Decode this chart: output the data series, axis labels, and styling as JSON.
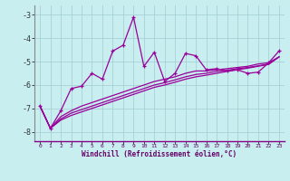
{
  "xlabel": "Windchill (Refroidissement éolien,°C)",
  "bg_color": "#c8eef0",
  "grid_color": "#a0ccd0",
  "line_color": "#990099",
  "xlim": [
    -0.5,
    23.5
  ],
  "ylim": [
    -8.4,
    -2.6
  ],
  "yticks": [
    -8,
    -7,
    -6,
    -5,
    -4,
    -3
  ],
  "xticks": [
    0,
    1,
    2,
    3,
    4,
    5,
    6,
    7,
    8,
    9,
    10,
    11,
    12,
    13,
    14,
    15,
    16,
    17,
    18,
    19,
    20,
    21,
    22,
    23
  ],
  "series1_x": [
    0,
    1,
    2,
    3,
    4,
    5,
    6,
    7,
    8,
    9,
    10,
    11,
    12,
    13,
    14,
    15,
    16,
    17,
    18,
    19,
    20,
    21,
    22,
    23
  ],
  "series1_y": [
    -6.9,
    -7.85,
    -7.1,
    -6.15,
    -6.05,
    -5.5,
    -5.75,
    -4.55,
    -4.3,
    -3.1,
    -5.2,
    -4.6,
    -5.85,
    -5.5,
    -4.65,
    -4.75,
    -5.35,
    -5.3,
    -5.4,
    -5.35,
    -5.5,
    -5.45,
    -5.05,
    -4.55
  ],
  "series2_x": [
    0,
    1,
    2,
    3,
    4,
    5,
    6,
    7,
    8,
    9,
    10,
    11,
    12,
    13,
    14,
    15,
    16,
    17,
    18,
    19,
    20,
    21,
    22,
    23
  ],
  "series2_y": [
    -6.9,
    -7.85,
    -7.35,
    -7.1,
    -6.9,
    -6.75,
    -6.6,
    -6.45,
    -6.3,
    -6.15,
    -6.0,
    -5.85,
    -5.75,
    -5.65,
    -5.5,
    -5.4,
    -5.4,
    -5.35,
    -5.3,
    -5.25,
    -5.2,
    -5.1,
    -5.05,
    -4.8
  ],
  "series3_x": [
    0,
    1,
    2,
    3,
    4,
    5,
    6,
    7,
    8,
    9,
    10,
    11,
    12,
    13,
    14,
    15,
    16,
    17,
    18,
    19,
    20,
    21,
    22,
    23
  ],
  "series3_y": [
    -6.9,
    -7.85,
    -7.45,
    -7.2,
    -7.05,
    -6.9,
    -6.75,
    -6.6,
    -6.45,
    -6.3,
    -6.15,
    -6.0,
    -5.9,
    -5.78,
    -5.65,
    -5.55,
    -5.5,
    -5.42,
    -5.37,
    -5.3,
    -5.25,
    -5.18,
    -5.1,
    -4.8
  ],
  "series4_x": [
    0,
    1,
    2,
    3,
    4,
    5,
    6,
    7,
    8,
    9,
    10,
    11,
    12,
    13,
    14,
    15,
    16,
    17,
    18,
    19,
    20,
    21,
    22,
    23
  ],
  "series4_y": [
    -6.9,
    -7.85,
    -7.5,
    -7.3,
    -7.15,
    -7.0,
    -6.85,
    -6.7,
    -6.55,
    -6.4,
    -6.25,
    -6.1,
    -6.0,
    -5.88,
    -5.75,
    -5.65,
    -5.58,
    -5.5,
    -5.42,
    -5.35,
    -5.28,
    -5.2,
    -5.12,
    -4.8
  ]
}
